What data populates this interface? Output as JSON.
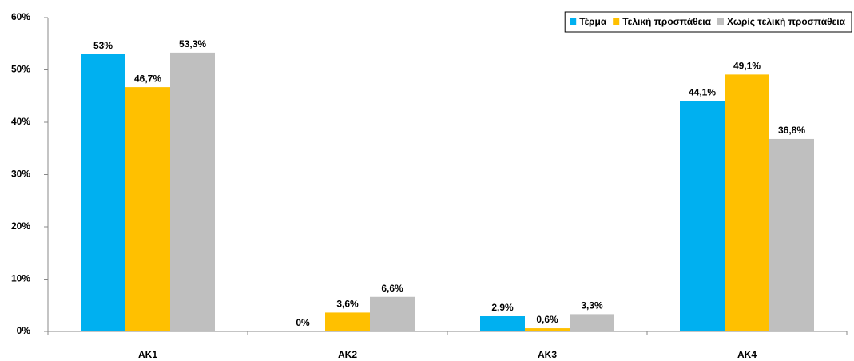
{
  "chart_data": {
    "type": "bar",
    "categories": [
      "AK1",
      "AK2",
      "AK3",
      "AK4"
    ],
    "series": [
      {
        "name": "Τέρμα",
        "color": "#00b0f0",
        "values": [
          53,
          0,
          2.9,
          44.1
        ],
        "value_labels": [
          "53%",
          "0%",
          "2,9%",
          "44,1%"
        ]
      },
      {
        "name": "Τελική προσπάθεια",
        "color": "#ffc000",
        "values": [
          46.7,
          3.6,
          0.6,
          49.1
        ],
        "value_labels": [
          "46,7%",
          "3,6%",
          "0,6%",
          "49,1%"
        ]
      },
      {
        "name": "Χωρίς τελική προσπάθεια",
        "color": "#bfbfbf",
        "values": [
          53.3,
          6.6,
          3.3,
          36.8
        ],
        "value_labels": [
          "53,3%",
          "6,6%",
          "3,3%",
          "36,8%"
        ]
      }
    ],
    "ylim": [
      0,
      60
    ],
    "yticks": [
      {
        "value": 0,
        "label": "0%"
      },
      {
        "value": 10,
        "label": "10%"
      },
      {
        "value": 20,
        "label": "20%"
      },
      {
        "value": 30,
        "label": "30%"
      },
      {
        "value": 40,
        "label": "40%"
      },
      {
        "value": 50,
        "label": "50%"
      },
      {
        "value": 60,
        "label": "60%"
      }
    ],
    "legend": "top-right"
  }
}
